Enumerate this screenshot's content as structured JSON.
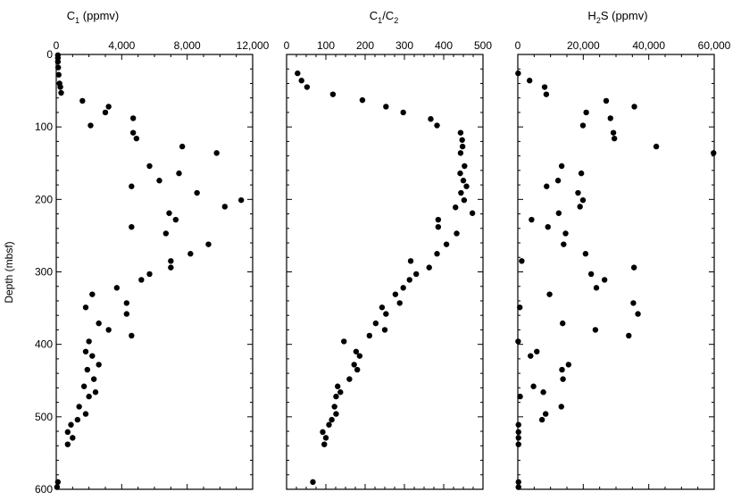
{
  "figure": {
    "ylabel": "Depth (mbsf)",
    "ylim": [
      0,
      600
    ],
    "yticks": [
      "0",
      "100",
      "200",
      "300",
      "400",
      "500",
      "600"
    ]
  },
  "chart_data": [
    {
      "type": "scatter",
      "title": {
        "main": "C",
        "sub": "1",
        "suffix": " (ppmv)"
      },
      "ylabel": "Depth (mbsf)",
      "xlim": [
        0,
        12000
      ],
      "ylim": [
        0,
        600
      ],
      "y_inverted": true,
      "xticks": [
        "0",
        "4,000",
        "8,000",
        "12,000"
      ],
      "points": [
        {
          "x": 100,
          "y": 1
        },
        {
          "x": 100,
          "y": 5
        },
        {
          "x": 100,
          "y": 10
        },
        {
          "x": 120,
          "y": 18
        },
        {
          "x": 150,
          "y": 28
        },
        {
          "x": 200,
          "y": 40
        },
        {
          "x": 250,
          "y": 45
        },
        {
          "x": 300,
          "y": 53
        },
        {
          "x": 1600,
          "y": 64
        },
        {
          "x": 3200,
          "y": 72
        },
        {
          "x": 3000,
          "y": 80
        },
        {
          "x": 4700,
          "y": 88
        },
        {
          "x": 2100,
          "y": 98
        },
        {
          "x": 4700,
          "y": 108
        },
        {
          "x": 4900,
          "y": 116
        },
        {
          "x": 7700,
          "y": 127
        },
        {
          "x": 9800,
          "y": 136
        },
        {
          "x": 5700,
          "y": 154
        },
        {
          "x": 7500,
          "y": 164
        },
        {
          "x": 6300,
          "y": 174
        },
        {
          "x": 4600,
          "y": 182
        },
        {
          "x": 8600,
          "y": 191
        },
        {
          "x": 11300,
          "y": 201
        },
        {
          "x": 10300,
          "y": 210
        },
        {
          "x": 6900,
          "y": 219
        },
        {
          "x": 7300,
          "y": 228
        },
        {
          "x": 4600,
          "y": 238
        },
        {
          "x": 6700,
          "y": 247
        },
        {
          "x": 9300,
          "y": 262
        },
        {
          "x": 8200,
          "y": 275
        },
        {
          "x": 7000,
          "y": 285
        },
        {
          "x": 7000,
          "y": 294
        },
        {
          "x": 5700,
          "y": 303
        },
        {
          "x": 5200,
          "y": 311
        },
        {
          "x": 3700,
          "y": 322
        },
        {
          "x": 2200,
          "y": 331
        },
        {
          "x": 4300,
          "y": 343
        },
        {
          "x": 1800,
          "y": 349
        },
        {
          "x": 4300,
          "y": 358
        },
        {
          "x": 2600,
          "y": 371
        },
        {
          "x": 3200,
          "y": 380
        },
        {
          "x": 4600,
          "y": 388
        },
        {
          "x": 2000,
          "y": 396
        },
        {
          "x": 1800,
          "y": 410
        },
        {
          "x": 2200,
          "y": 416
        },
        {
          "x": 2600,
          "y": 428
        },
        {
          "x": 1900,
          "y": 435
        },
        {
          "x": 2300,
          "y": 448
        },
        {
          "x": 1700,
          "y": 458
        },
        {
          "x": 2400,
          "y": 466
        },
        {
          "x": 2000,
          "y": 472
        },
        {
          "x": 1400,
          "y": 486
        },
        {
          "x": 1800,
          "y": 496
        },
        {
          "x": 1300,
          "y": 504
        },
        {
          "x": 900,
          "y": 511
        },
        {
          "x": 700,
          "y": 521
        },
        {
          "x": 1000,
          "y": 529
        },
        {
          "x": 700,
          "y": 538
        },
        {
          "x": 100,
          "y": 590
        },
        {
          "x": 50,
          "y": 597
        }
      ]
    },
    {
      "type": "scatter",
      "title": {
        "main": "C",
        "sub": "1",
        "mid": "/C",
        "sub2": "2",
        "suffix": ""
      },
      "xlim": [
        0,
        500
      ],
      "ylim": [
        0,
        600
      ],
      "y_inverted": true,
      "xticks": [
        "0",
        "100",
        "200",
        "300",
        "400",
        "500"
      ],
      "points": [
        {
          "x": 28,
          "y": 26
        },
        {
          "x": 38,
          "y": 36
        },
        {
          "x": 52,
          "y": 45
        },
        {
          "x": 118,
          "y": 55
        },
        {
          "x": 193,
          "y": 63
        },
        {
          "x": 253,
          "y": 72
        },
        {
          "x": 297,
          "y": 80
        },
        {
          "x": 367,
          "y": 89
        },
        {
          "x": 383,
          "y": 98
        },
        {
          "x": 443,
          "y": 108
        },
        {
          "x": 447,
          "y": 118
        },
        {
          "x": 448,
          "y": 127
        },
        {
          "x": 443,
          "y": 136
        },
        {
          "x": 453,
          "y": 154
        },
        {
          "x": 442,
          "y": 164
        },
        {
          "x": 450,
          "y": 174
        },
        {
          "x": 458,
          "y": 182
        },
        {
          "x": 444,
          "y": 191
        },
        {
          "x": 452,
          "y": 201
        },
        {
          "x": 430,
          "y": 211
        },
        {
          "x": 473,
          "y": 219
        },
        {
          "x": 386,
          "y": 228
        },
        {
          "x": 386,
          "y": 238
        },
        {
          "x": 433,
          "y": 247
        },
        {
          "x": 407,
          "y": 262
        },
        {
          "x": 383,
          "y": 275
        },
        {
          "x": 316,
          "y": 285
        },
        {
          "x": 363,
          "y": 294
        },
        {
          "x": 330,
          "y": 303
        },
        {
          "x": 313,
          "y": 311
        },
        {
          "x": 297,
          "y": 322
        },
        {
          "x": 277,
          "y": 331
        },
        {
          "x": 288,
          "y": 343
        },
        {
          "x": 243,
          "y": 349
        },
        {
          "x": 253,
          "y": 358
        },
        {
          "x": 227,
          "y": 371
        },
        {
          "x": 250,
          "y": 380
        },
        {
          "x": 211,
          "y": 388
        },
        {
          "x": 146,
          "y": 396
        },
        {
          "x": 177,
          "y": 410
        },
        {
          "x": 186,
          "y": 416
        },
        {
          "x": 172,
          "y": 428
        },
        {
          "x": 180,
          "y": 435
        },
        {
          "x": 160,
          "y": 448
        },
        {
          "x": 130,
          "y": 458
        },
        {
          "x": 137,
          "y": 466
        },
        {
          "x": 126,
          "y": 472
        },
        {
          "x": 122,
          "y": 486
        },
        {
          "x": 126,
          "y": 496
        },
        {
          "x": 115,
          "y": 504
        },
        {
          "x": 108,
          "y": 511
        },
        {
          "x": 92,
          "y": 521
        },
        {
          "x": 100,
          "y": 529
        },
        {
          "x": 96,
          "y": 538
        },
        {
          "x": 67,
          "y": 590
        }
      ]
    },
    {
      "type": "scatter",
      "title": {
        "main": "H",
        "sub": "2",
        "mid": "S",
        "suffix": " (ppmv)"
      },
      "xlim": [
        0,
        60000
      ],
      "ylim": [
        0,
        600
      ],
      "y_inverted": true,
      "xticks": [
        "0",
        "20,000",
        "40,000",
        "60,000"
      ],
      "points": [
        {
          "x": 100,
          "y": 26
        },
        {
          "x": 3600,
          "y": 36
        },
        {
          "x": 8200,
          "y": 45
        },
        {
          "x": 8700,
          "y": 55
        },
        {
          "x": 27000,
          "y": 64
        },
        {
          "x": 35600,
          "y": 72
        },
        {
          "x": 20900,
          "y": 80
        },
        {
          "x": 28300,
          "y": 88
        },
        {
          "x": 19900,
          "y": 98
        },
        {
          "x": 29200,
          "y": 108
        },
        {
          "x": 29500,
          "y": 116
        },
        {
          "x": 42300,
          "y": 127
        },
        {
          "x": 59800,
          "y": 136
        },
        {
          "x": 13400,
          "y": 154
        },
        {
          "x": 19400,
          "y": 164
        },
        {
          "x": 12300,
          "y": 174
        },
        {
          "x": 8800,
          "y": 182
        },
        {
          "x": 18400,
          "y": 191
        },
        {
          "x": 19900,
          "y": 201
        },
        {
          "x": 19000,
          "y": 210
        },
        {
          "x": 12500,
          "y": 219
        },
        {
          "x": 4200,
          "y": 228
        },
        {
          "x": 9200,
          "y": 238
        },
        {
          "x": 14600,
          "y": 247
        },
        {
          "x": 14000,
          "y": 262
        },
        {
          "x": 20700,
          "y": 275
        },
        {
          "x": 1200,
          "y": 285
        },
        {
          "x": 35500,
          "y": 294
        },
        {
          "x": 22400,
          "y": 303
        },
        {
          "x": 26500,
          "y": 311
        },
        {
          "x": 24000,
          "y": 322
        },
        {
          "x": 9700,
          "y": 331
        },
        {
          "x": 35300,
          "y": 343
        },
        {
          "x": 600,
          "y": 349
        },
        {
          "x": 36700,
          "y": 358
        },
        {
          "x": 13700,
          "y": 371
        },
        {
          "x": 23700,
          "y": 380
        },
        {
          "x": 33900,
          "y": 388
        },
        {
          "x": 100,
          "y": 396
        },
        {
          "x": 5800,
          "y": 410
        },
        {
          "x": 3900,
          "y": 416
        },
        {
          "x": 15500,
          "y": 428
        },
        {
          "x": 13500,
          "y": 435
        },
        {
          "x": 13800,
          "y": 448
        },
        {
          "x": 4800,
          "y": 458
        },
        {
          "x": 7800,
          "y": 466
        },
        {
          "x": 700,
          "y": 472
        },
        {
          "x": 13300,
          "y": 486
        },
        {
          "x": 8500,
          "y": 496
        },
        {
          "x": 7400,
          "y": 504
        },
        {
          "x": 200,
          "y": 511
        },
        {
          "x": 200,
          "y": 521
        },
        {
          "x": 200,
          "y": 529
        },
        {
          "x": 200,
          "y": 538
        },
        {
          "x": 200,
          "y": 590
        },
        {
          "x": 200,
          "y": 597
        }
      ]
    }
  ]
}
